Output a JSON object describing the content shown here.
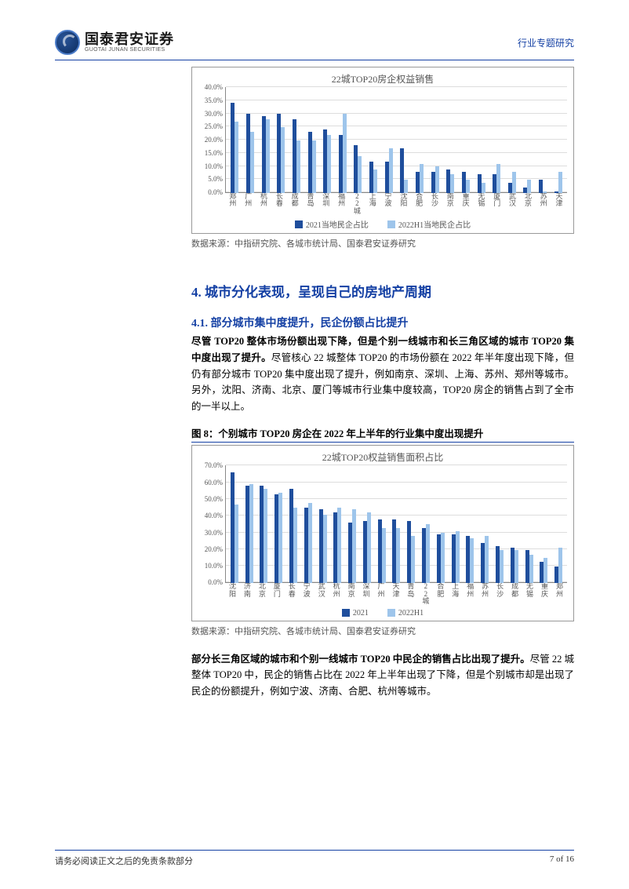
{
  "header": {
    "logo_cn": "国泰君安证券",
    "logo_en": "GUOTAI JUNAN SECURITIES",
    "right_text": "行业专题研究"
  },
  "chart1": {
    "title": "22城TOP20房企权益销售",
    "height": 135,
    "ymax": 40,
    "ytick_step": 5,
    "y_suffix": "%",
    "series_names": [
      "2021当地民企占比",
      "2022H1当地民企占比"
    ],
    "series_colors": [
      "#1f4e9c",
      "#9ec5eb"
    ],
    "grid_color": "#dddddd",
    "categories": [
      "郑州",
      "广州",
      "杭州",
      "长春",
      "成都",
      "青岛",
      "深圳",
      "福州",
      "22城",
      "上海",
      "宁波",
      "沈阳",
      "合肥",
      "长沙",
      "南京",
      "重庆",
      "无锡",
      "厦门",
      "武汉",
      "北京",
      "苏州",
      "天津"
    ],
    "s1": [
      34,
      30,
      29,
      30,
      28,
      23,
      24,
      22,
      18,
      12,
      12,
      17,
      8,
      8,
      9,
      8,
      7,
      7,
      4,
      2,
      5,
      0.5
    ],
    "s2": [
      27,
      23,
      28,
      25,
      20,
      20,
      22,
      30,
      14,
      9,
      17,
      5,
      11,
      10,
      7,
      5,
      4,
      11,
      8,
      5,
      0.5,
      8
    ]
  },
  "source1": "数据来源：中指研究院、各城市统计局、国泰君安证券研究",
  "h2": "4.  城市分化表现，呈现自己的房地产周期",
  "h3": "4.1.   部分城市集中度提升，民企份额占比提升",
  "para1_bold": "尽管 TOP20 整体市场份额出现下降，但是个别一线城市和长三角区域的城市 TOP20 集中度出现了提升。",
  "para1_rest": "尽管核心 22 城整体 TOP20 的市场份额在 2022 年半年度出现下降，但仍有部分城市 TOP20 集中度出现了提升，例如南京、深圳、上海、苏州、郑州等城市。另外，沈阳、济南、北京、厦门等城市行业集中度较高，TOP20 房企的销售占到了全市的一半以上。",
  "fig8_caption": "图  8：个别城市 TOP20 房企在 2022 年上半年的行业集中度出现提升",
  "chart2": {
    "title": "22城TOP20权益销售面积占比",
    "height": 150,
    "ymax": 70,
    "ytick_step": 10,
    "y_suffix": "%",
    "series_names": [
      "2021",
      "2022H1"
    ],
    "series_colors": [
      "#1f4e9c",
      "#9ec5eb"
    ],
    "grid_color": "#dddddd",
    "categories": [
      "沈阳",
      "济南",
      "北京",
      "厦门",
      "长春",
      "宁波",
      "武汉",
      "杭州",
      "南京",
      "深圳",
      "广州",
      "天津",
      "青岛",
      "22城",
      "合肥",
      "上海",
      "福州",
      "苏州",
      "长沙",
      "成都",
      "无锡",
      "重庆",
      "郑州"
    ],
    "s1": [
      66,
      58,
      58,
      53,
      56,
      45,
      44,
      42,
      36,
      37,
      38,
      38,
      37,
      33,
      29,
      29,
      28,
      24,
      22,
      21,
      20,
      13,
      10
    ],
    "s2": [
      47,
      59,
      56,
      54,
      45,
      48,
      41,
      45,
      44,
      42,
      33,
      33,
      28,
      35,
      30,
      31,
      27,
      28,
      20,
      20,
      17,
      15,
      21
    ]
  },
  "source2": "数据来源：中指研究院、各城市统计局、国泰君安证券研究",
  "para2_bold": "部分长三角区域的城市和个别一线城市 TOP20 中民企的销售占比出现了提升。",
  "para2_rest": "尽管 22 城整体 TOP20 中，民企的销售占比在 2022 年上半年出现了下降，但是个别城市却是出现了民企的份额提升，例如宁波、济南、合肥、杭州等城市。",
  "footer": {
    "left": "请务必阅读正文之后的免责条款部分",
    "right": "7 of 16"
  }
}
